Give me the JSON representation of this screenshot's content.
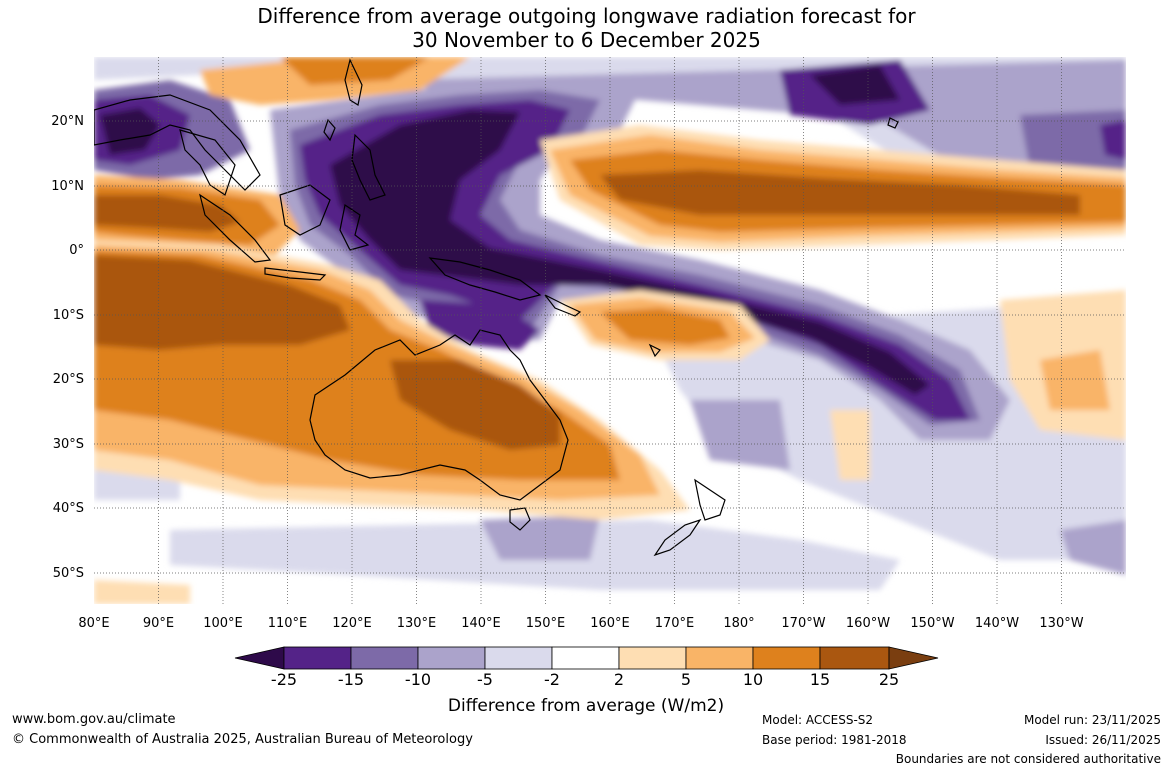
{
  "title": {
    "line1": "Difference from average outgoing longwave radiation forecast for",
    "line2": "30 November to 6 December 2025"
  },
  "map": {
    "lat_labels": [
      "20°N",
      "10°N",
      "0°",
      "10°S",
      "20°S",
      "30°S",
      "40°S",
      "50°S"
    ],
    "lon_labels": [
      "80°E",
      "90°E",
      "100°E",
      "110°E",
      "120°E",
      "130°E",
      "140°E",
      "150°E",
      "160°E",
      "170°E",
      "180°",
      "170°W",
      "160°W",
      "150°W",
      "140°W",
      "130°W"
    ]
  },
  "colorbar": {
    "ticks": [
      "-25",
      "-15",
      "-10",
      "-5",
      "-2",
      "2",
      "5",
      "10",
      "15",
      "25"
    ],
    "colors": [
      "#2e0a4a",
      "#542388",
      "#7d6aa8",
      "#aba3cb",
      "#dadaec",
      "#ffffff",
      "#fedeb3",
      "#f9b467",
      "#de811d",
      "#aa5710",
      "#7a3e10"
    ],
    "title": "Difference from average (W/m2)"
  },
  "footer": {
    "website": "www.bom.gov.au/climate",
    "copyright": "© Commonwealth of Australia 2025, Australian Bureau of Meteorology",
    "model": "Model: ACCESS-S2",
    "base_period": "Base period: 1981-2018",
    "model_run": "Model run: 23/11/2025",
    "issued": "Issued: 26/11/2025",
    "disclaimer": "Boundaries are not considered authoritative"
  }
}
